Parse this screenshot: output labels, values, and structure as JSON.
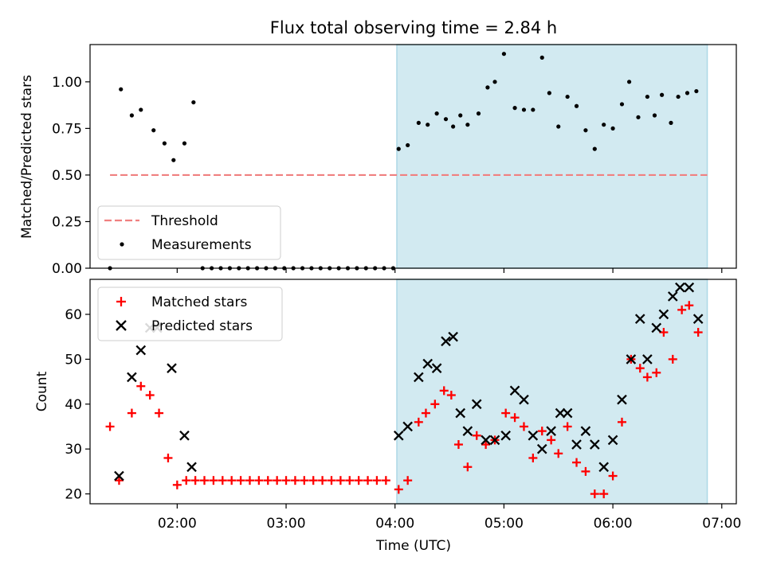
{
  "colors": {
    "threshold": "#f08080",
    "measurement": "#000000",
    "matched": "#ff0000",
    "predicted": "#000000",
    "observing_band": "#add8e6"
  },
  "chart_data": [
    {
      "type": "scatter",
      "title": "Flux total observing time = 2.84 h",
      "xlabel": "",
      "ylabel": "Matched/Predicted stars",
      "x_unit": "time UTC (HH:MM)",
      "xlim": [
        "01:12",
        "07:08"
      ],
      "ylim": [
        0,
        1.2
      ],
      "y_ticks": [
        "0.00",
        "0.25",
        "0.50",
        "0.75",
        "1.00"
      ],
      "x_ticks_shown": false,
      "grid": false,
      "legend": "lower-left",
      "shaded_span": [
        "04:01",
        "06:52"
      ],
      "threshold": {
        "name": "Threshold",
        "value": 0.5,
        "x": [
          "01:23",
          "06:52"
        ],
        "style": "dashed"
      },
      "series": [
        {
          "name": "Measurements",
          "marker": "dot",
          "points": [
            [
              "01:23",
              0.0
            ],
            [
              "01:29",
              0.96
            ],
            [
              "01:35",
              0.82
            ],
            [
              "01:40",
              0.85
            ],
            [
              "01:47",
              0.74
            ],
            [
              "01:53",
              0.67
            ],
            [
              "01:58",
              0.58
            ],
            [
              "02:04",
              0.67
            ],
            [
              "02:09",
              0.89
            ],
            [
              "02:14",
              0.0
            ],
            [
              "02:19",
              0.0
            ],
            [
              "02:24",
              0.0
            ],
            [
              "02:29",
              0.0
            ],
            [
              "02:34",
              0.0
            ],
            [
              "02:39",
              0.0
            ],
            [
              "02:44",
              0.0
            ],
            [
              "02:49",
              0.0
            ],
            [
              "02:54",
              0.0
            ],
            [
              "02:59",
              0.0
            ],
            [
              "03:04",
              0.0
            ],
            [
              "03:09",
              0.0
            ],
            [
              "03:14",
              0.0
            ],
            [
              "03:19",
              0.0
            ],
            [
              "03:24",
              0.0
            ],
            [
              "03:29",
              0.0
            ],
            [
              "03:34",
              0.0
            ],
            [
              "03:39",
              0.0
            ],
            [
              "03:44",
              0.0
            ],
            [
              "03:49",
              0.0
            ],
            [
              "03:54",
              0.0
            ],
            [
              "03:59",
              0.0
            ],
            [
              "04:02",
              0.64
            ],
            [
              "04:07",
              0.66
            ],
            [
              "04:13",
              0.78
            ],
            [
              "04:18",
              0.77
            ],
            [
              "04:23",
              0.83
            ],
            [
              "04:28",
              0.8
            ],
            [
              "04:32",
              0.76
            ],
            [
              "04:36",
              0.82
            ],
            [
              "04:40",
              0.77
            ],
            [
              "04:46",
              0.83
            ],
            [
              "04:51",
              0.97
            ],
            [
              "04:55",
              1.0
            ],
            [
              "05:00",
              1.15
            ],
            [
              "05:06",
              0.86
            ],
            [
              "05:11",
              0.85
            ],
            [
              "05:16",
              0.85
            ],
            [
              "05:21",
              1.13
            ],
            [
              "05:25",
              0.94
            ],
            [
              "05:30",
              0.76
            ],
            [
              "05:35",
              0.92
            ],
            [
              "05:40",
              0.87
            ],
            [
              "05:45",
              0.74
            ],
            [
              "05:50",
              0.64
            ],
            [
              "05:55",
              0.77
            ],
            [
              "06:00",
              0.75
            ],
            [
              "06:05",
              0.88
            ],
            [
              "06:09",
              1.0
            ],
            [
              "06:14",
              0.81
            ],
            [
              "06:19",
              0.92
            ],
            [
              "06:23",
              0.82
            ],
            [
              "06:27",
              0.93
            ],
            [
              "06:32",
              0.78
            ],
            [
              "06:36",
              0.92
            ],
            [
              "06:41",
              0.94
            ],
            [
              "06:46",
              0.95
            ]
          ]
        }
      ]
    },
    {
      "type": "scatter",
      "title": "",
      "xlabel": "Time (UTC)",
      "ylabel": "Count",
      "x_unit": "time UTC (HH:MM)",
      "xlim": [
        "01:12",
        "07:08"
      ],
      "ylim": [
        17.8,
        67.8
      ],
      "y_ticks": [
        "20",
        "30",
        "40",
        "50",
        "60"
      ],
      "x_ticks": [
        "02:00",
        "03:00",
        "04:00",
        "05:00",
        "06:00",
        "07:00"
      ],
      "grid": false,
      "legend": "top-left",
      "shaded_span": [
        "04:01",
        "06:52"
      ],
      "series": [
        {
          "name": "Matched stars",
          "marker": "plus",
          "points": [
            [
              "01:23",
              35
            ],
            [
              "01:28",
              23
            ],
            [
              "01:35",
              38
            ],
            [
              "01:40",
              44
            ],
            [
              "01:45",
              42
            ],
            [
              "01:50",
              38
            ],
            [
              "01:55",
              28
            ],
            [
              "02:00",
              22
            ],
            [
              "02:05",
              23
            ],
            [
              "02:10",
              23
            ],
            [
              "02:15",
              23
            ],
            [
              "02:20",
              23
            ],
            [
              "02:25",
              23
            ],
            [
              "02:30",
              23
            ],
            [
              "02:35",
              23
            ],
            [
              "02:40",
              23
            ],
            [
              "02:45",
              23
            ],
            [
              "02:50",
              23
            ],
            [
              "02:55",
              23
            ],
            [
              "03:00",
              23
            ],
            [
              "03:05",
              23
            ],
            [
              "03:10",
              23
            ],
            [
              "03:15",
              23
            ],
            [
              "03:20",
              23
            ],
            [
              "03:25",
              23
            ],
            [
              "03:30",
              23
            ],
            [
              "03:35",
              23
            ],
            [
              "03:40",
              23
            ],
            [
              "03:45",
              23
            ],
            [
              "03:50",
              23
            ],
            [
              "03:55",
              23
            ],
            [
              "04:02",
              21
            ],
            [
              "04:07",
              23
            ],
            [
              "04:13",
              36
            ],
            [
              "04:17",
              38
            ],
            [
              "04:22",
              40
            ],
            [
              "04:27",
              43
            ],
            [
              "04:31",
              42
            ],
            [
              "04:35",
              31
            ],
            [
              "04:40",
              26
            ],
            [
              "04:45",
              33
            ],
            [
              "04:50",
              31
            ],
            [
              "04:55",
              32
            ],
            [
              "05:01",
              38
            ],
            [
              "05:06",
              37
            ],
            [
              "05:11",
              35
            ],
            [
              "05:16",
              28
            ],
            [
              "05:21",
              34
            ],
            [
              "05:26",
              32
            ],
            [
              "05:30",
              29
            ],
            [
              "05:35",
              35
            ],
            [
              "05:40",
              27
            ],
            [
              "05:45",
              25
            ],
            [
              "05:50",
              20
            ],
            [
              "05:55",
              20
            ],
            [
              "06:00",
              24
            ],
            [
              "06:05",
              36
            ],
            [
              "06:10",
              50
            ],
            [
              "06:15",
              48
            ],
            [
              "06:19",
              46
            ],
            [
              "06:24",
              47
            ],
            [
              "06:28",
              56
            ],
            [
              "06:33",
              50
            ],
            [
              "06:38",
              61
            ],
            [
              "06:42",
              62
            ],
            [
              "06:47",
              56
            ]
          ]
        },
        {
          "name": "Predicted stars",
          "marker": "x",
          "points": [
            [
              "01:28",
              24
            ],
            [
              "01:35",
              46
            ],
            [
              "01:40",
              52
            ],
            [
              "01:45",
              57
            ],
            [
              "01:49",
              57
            ],
            [
              "01:57",
              48
            ],
            [
              "02:04",
              33
            ],
            [
              "02:08",
              26
            ],
            [
              "04:02",
              33
            ],
            [
              "04:07",
              35
            ],
            [
              "04:13",
              46
            ],
            [
              "04:18",
              49
            ],
            [
              "04:23",
              48
            ],
            [
              "04:28",
              54
            ],
            [
              "04:32",
              55
            ],
            [
              "04:36",
              38
            ],
            [
              "04:40",
              34
            ],
            [
              "04:45",
              40
            ],
            [
              "04:50",
              32
            ],
            [
              "04:55",
              32
            ],
            [
              "05:01",
              33
            ],
            [
              "05:06",
              43
            ],
            [
              "05:11",
              41
            ],
            [
              "05:16",
              33
            ],
            [
              "05:21",
              30
            ],
            [
              "05:26",
              34
            ],
            [
              "05:31",
              38
            ],
            [
              "05:35",
              38
            ],
            [
              "05:40",
              31
            ],
            [
              "05:45",
              34
            ],
            [
              "05:50",
              31
            ],
            [
              "05:55",
              26
            ],
            [
              "06:00",
              32
            ],
            [
              "06:05",
              41
            ],
            [
              "06:10",
              50
            ],
            [
              "06:15",
              59
            ],
            [
              "06:19",
              50
            ],
            [
              "06:24",
              57
            ],
            [
              "06:28",
              60
            ],
            [
              "06:33",
              64
            ],
            [
              "06:37",
              66
            ],
            [
              "06:42",
              66
            ],
            [
              "06:47",
              59
            ]
          ]
        }
      ]
    }
  ]
}
